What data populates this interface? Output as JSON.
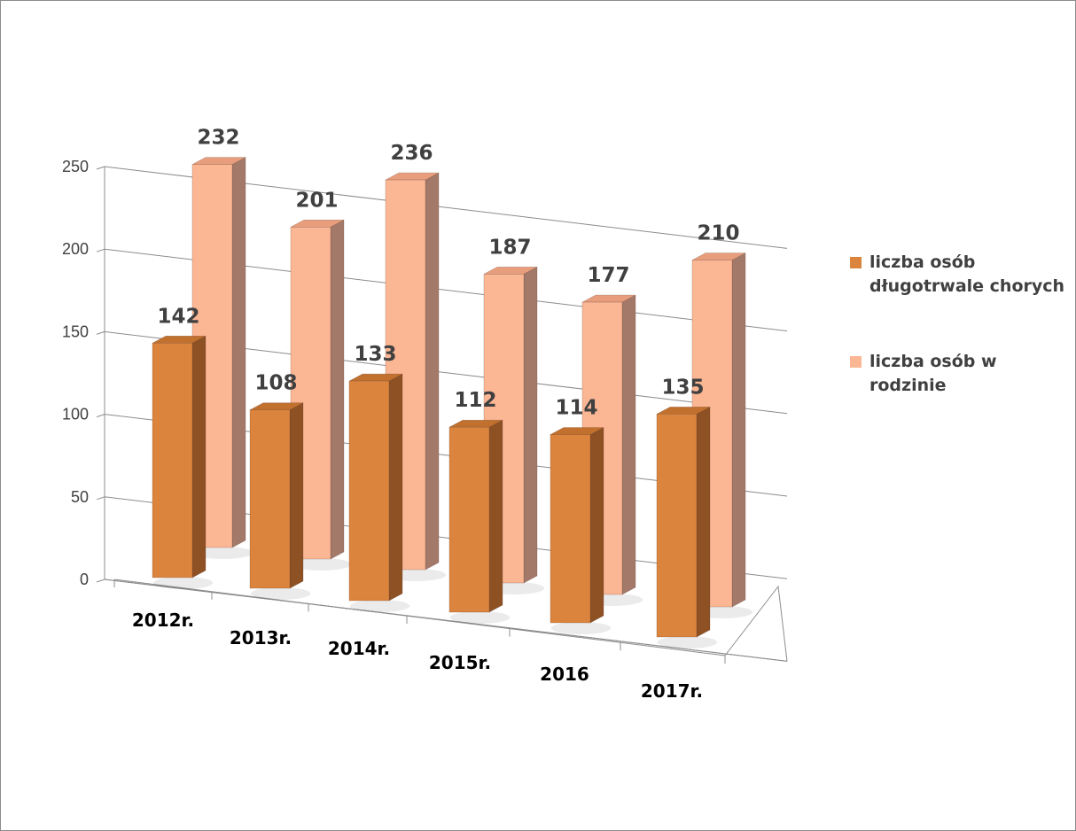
{
  "chart_data": {
    "type": "bar",
    "categories": [
      "2012r.",
      "2013r.",
      "2014r.",
      "2015r.",
      "2016",
      "2017r."
    ],
    "series": [
      {
        "name": "liczba osób długotrwale chorych",
        "values": [
          142,
          108,
          133,
          112,
          114,
          135
        ],
        "color": "#db843d",
        "side_color": "#8d5124",
        "top_color": "#c2702e"
      },
      {
        "name": "liczba osób  w rodzinie",
        "values": [
          232,
          201,
          236,
          187,
          177,
          210
        ],
        "color": "#fbb694",
        "side_color": "#a3796a",
        "top_color": "#e89e7c"
      }
    ],
    "yticks": [
      "0",
      "50",
      "100",
      "150",
      "200",
      "250"
    ],
    "ylim": [
      0,
      250
    ],
    "grid": true,
    "legend_position": "right",
    "title": "",
    "xlabel": "",
    "ylabel": ""
  },
  "legend": {
    "items": [
      {
        "label": "liczba osób długotrwale chorych",
        "color": "#db843d"
      },
      {
        "label": "liczba osób  w rodzinie",
        "color": "#fbb694"
      }
    ]
  }
}
